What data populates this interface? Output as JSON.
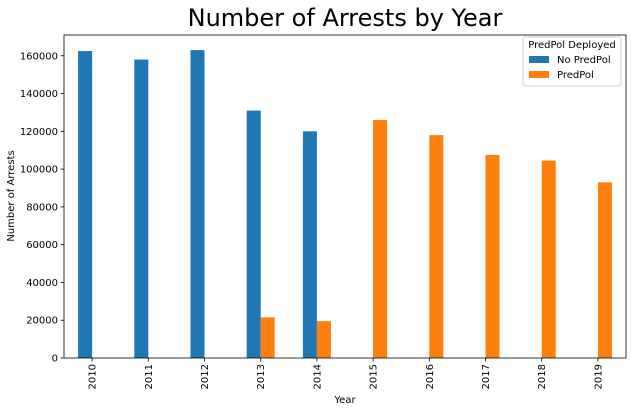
{
  "chart_data": {
    "type": "bar",
    "title": "Number of Arrests by Year",
    "xlabel": "Year",
    "ylabel": "Number of Arrests",
    "categories": [
      "2010",
      "2011",
      "2012",
      "2013",
      "2014",
      "2015",
      "2016",
      "2017",
      "2018",
      "2019"
    ],
    "series": [
      {
        "name": "No PredPol",
        "color": "#1f77b4",
        "values": [
          162500,
          158000,
          163000,
          131000,
          120000,
          0,
          0,
          0,
          0,
          0
        ]
      },
      {
        "name": "PredPol",
        "color": "#ff7f0e",
        "values": [
          0,
          0,
          0,
          21500,
          19500,
          126000,
          118000,
          107500,
          104500,
          93000
        ]
      }
    ],
    "yticks": [
      0,
      20000,
      40000,
      60000,
      80000,
      100000,
      120000,
      140000,
      160000
    ],
    "ylim": [
      0,
      171000
    ],
    "legend_title": "PredPol Deployed",
    "legend_position": "top-right",
    "grid": false
  }
}
